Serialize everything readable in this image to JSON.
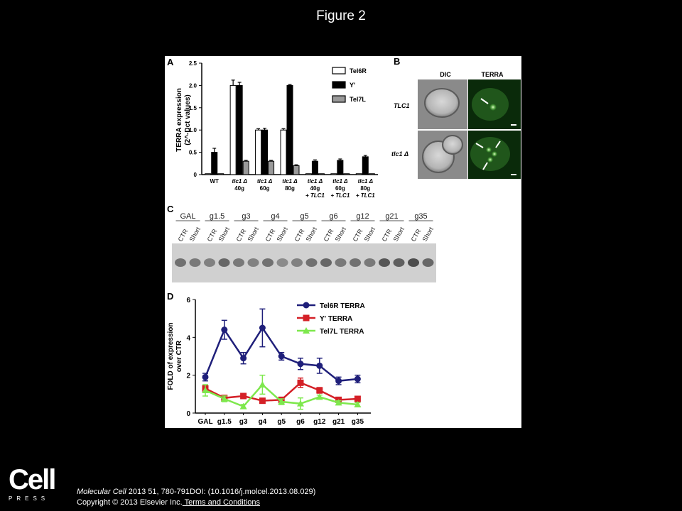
{
  "slide_title": "Figure 2",
  "panel_labels": {
    "a": "A",
    "b": "B",
    "c": "C",
    "d": "D"
  },
  "chart_data": [
    {
      "type": "bar",
      "panel": "A",
      "ylabel_line1": "TERRA expression",
      "ylabel_line2": "(2^-Dct values)",
      "ylim": [
        0,
        2.5
      ],
      "yticks": [
        "0",
        "0.5",
        "1.0",
        "1.5",
        "2.0",
        "2.5"
      ],
      "categories": [
        {
          "line1": "WT",
          "line2": "",
          "line3": ""
        },
        {
          "line1": "tlc1 Δ",
          "line2": "40g",
          "line3": ""
        },
        {
          "line1": "tlc1 Δ",
          "line2": "60g",
          "line3": ""
        },
        {
          "line1": "tlc1 Δ",
          "line2": "80g",
          "line3": ""
        },
        {
          "line1": "tlc1 Δ",
          "line2": "40g",
          "line3": "+ TLC1"
        },
        {
          "line1": "tlc1 Δ",
          "line2": "60g",
          "line3": "+ TLC1"
        },
        {
          "line1": "tlc1 Δ",
          "line2": "80g",
          "line3": "+ TLC1"
        }
      ],
      "series": [
        {
          "name": "Tel6R",
          "fill": "#ffffff",
          "values": [
            0.02,
            2.0,
            1.0,
            1.0,
            0.02,
            0.02,
            0.02
          ],
          "errors": [
            0,
            0.12,
            0.03,
            0.03,
            0,
            0,
            0
          ]
        },
        {
          "name": "Y'",
          "fill": "#000000",
          "values": [
            0.5,
            2.0,
            1.0,
            2.0,
            0.3,
            0.32,
            0.4
          ],
          "errors": [
            0.09,
            0.07,
            0.04,
            0.02,
            0.03,
            0.03,
            0.03
          ]
        },
        {
          "name": "Tel7L",
          "fill": "#9a9a9a",
          "values": [
            0.02,
            0.3,
            0.3,
            0.2,
            0.02,
            0.02,
            0.02
          ],
          "errors": [
            0,
            0.02,
            0.02,
            0.02,
            0,
            0,
            0
          ]
        }
      ],
      "legend_placement": "top-right"
    },
    {
      "type": "line",
      "panel": "D",
      "ylabel_line1": "FOLD of expression",
      "ylabel_line2": "over CTR",
      "ylim": [
        0,
        6
      ],
      "yticks": [
        "0",
        "2",
        "4",
        "6"
      ],
      "categories": [
        "GAL",
        "g1.5",
        "g3",
        "g4",
        "g5",
        "g6",
        "g12",
        "g21",
        "g35"
      ],
      "series": [
        {
          "name": "Tel6R TERRA",
          "color": "#1f1f7a",
          "marker": "circle",
          "values": [
            1.9,
            4.4,
            2.9,
            4.5,
            3.0,
            2.6,
            2.5,
            1.7,
            1.8
          ],
          "errors": [
            0.2,
            0.5,
            0.3,
            1.0,
            0.2,
            0.3,
            0.4,
            0.2,
            0.2
          ]
        },
        {
          "name": "Y' TERRA",
          "color": "#d42027",
          "marker": "square",
          "values": [
            1.3,
            0.8,
            0.9,
            0.65,
            0.7,
            1.6,
            1.2,
            0.7,
            0.75
          ],
          "errors": [
            0.15,
            0.1,
            0.1,
            0.1,
            0.1,
            0.25,
            0.15,
            0.1,
            0.1
          ]
        },
        {
          "name": "Tel7L TERRA",
          "color": "#7ee84d",
          "marker": "triangle",
          "values": [
            1.2,
            0.75,
            0.35,
            1.5,
            0.6,
            0.5,
            0.85,
            0.55,
            0.45
          ],
          "errors": [
            0.3,
            0.15,
            0.1,
            0.5,
            0.15,
            0.3,
            0.1,
            0.1,
            0.1
          ]
        }
      ],
      "legend_placement": "top-right"
    }
  ],
  "panel_b": {
    "col_dic": "DIC",
    "col_terra": "TERRA",
    "row1": "TLC1",
    "row2": "tlc1 Δ"
  },
  "panel_c": {
    "groups": [
      "GAL",
      "g1.5",
      "g3",
      "g4",
      "g5",
      "g6",
      "g12",
      "g21",
      "g35"
    ],
    "lane_labels": [
      "CTR",
      "Short"
    ]
  },
  "logo": {
    "word": "Cell",
    "sub": "PRESS"
  },
  "citation": {
    "journal": "Molecular Cell",
    "ref": " 2013 51, 780-791DOI: (10.1016/j.molcel.2013.08.029)",
    "copyright": "Copyright © 2013 Elsevier Inc.",
    "terms": " Terms and Conditions"
  }
}
